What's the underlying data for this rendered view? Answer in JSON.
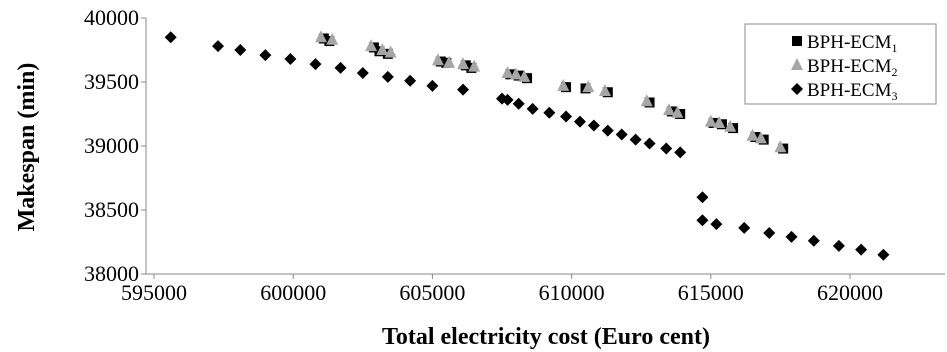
{
  "chart_data": {
    "type": "scatter",
    "title": "",
    "xlabel": "Total electricity cost (Euro  cent)",
    "ylabel": "Makespan (min)",
    "xlim": [
      595000,
      621500
    ],
    "ylim": [
      38000,
      40000
    ],
    "xticks": [
      "595000",
      "600000",
      "605000",
      "610000",
      "615000",
      "620000"
    ],
    "yticks": [
      "38000",
      "38500",
      "39000",
      "39500",
      "40000"
    ],
    "grid": false,
    "legend_position": "top-right",
    "series": [
      {
        "name_base": "BPH-ECM",
        "name_sub": "1",
        "marker": "square",
        "color": "#000000",
        "points": [
          [
            601100,
            39840
          ],
          [
            601300,
            39820
          ],
          [
            602900,
            39770
          ],
          [
            603100,
            39740
          ],
          [
            603400,
            39720
          ],
          [
            605300,
            39660
          ],
          [
            605500,
            39650
          ],
          [
            606200,
            39630
          ],
          [
            606400,
            39610
          ],
          [
            607800,
            39560
          ],
          [
            608100,
            39550
          ],
          [
            608400,
            39530
          ],
          [
            609800,
            39460
          ],
          [
            610500,
            39450
          ],
          [
            611300,
            39420
          ],
          [
            612800,
            39340
          ],
          [
            613600,
            39270
          ],
          [
            613900,
            39250
          ],
          [
            615100,
            39180
          ],
          [
            615400,
            39170
          ],
          [
            615800,
            39140
          ],
          [
            616600,
            39070
          ],
          [
            616900,
            39050
          ],
          [
            617600,
            38980
          ]
        ]
      },
      {
        "name_base": "BPH-ECM",
        "name_sub": "2",
        "marker": "triangle",
        "color": "#a6a6a6",
        "points": [
          [
            601000,
            39850
          ],
          [
            601400,
            39830
          ],
          [
            602800,
            39780
          ],
          [
            603200,
            39750
          ],
          [
            603500,
            39730
          ],
          [
            605200,
            39670
          ],
          [
            605600,
            39650
          ],
          [
            606100,
            39640
          ],
          [
            606500,
            39620
          ],
          [
            607700,
            39570
          ],
          [
            608000,
            39560
          ],
          [
            608300,
            39540
          ],
          [
            609700,
            39470
          ],
          [
            610600,
            39460
          ],
          [
            611200,
            39430
          ],
          [
            612700,
            39350
          ],
          [
            613500,
            39280
          ],
          [
            613800,
            39260
          ],
          [
            615000,
            39190
          ],
          [
            615300,
            39180
          ],
          [
            615700,
            39150
          ],
          [
            616500,
            39080
          ],
          [
            616800,
            39060
          ],
          [
            617500,
            38990
          ]
        ]
      },
      {
        "name_base": "BPH-ECM",
        "name_sub": "3",
        "marker": "diamond",
        "color": "#000000",
        "points": [
          [
            595600,
            39850
          ],
          [
            597300,
            39780
          ],
          [
            598100,
            39750
          ],
          [
            599000,
            39710
          ],
          [
            599900,
            39680
          ],
          [
            600800,
            39640
          ],
          [
            601700,
            39610
          ],
          [
            602500,
            39570
          ],
          [
            603400,
            39540
          ],
          [
            604200,
            39510
          ],
          [
            605000,
            39470
          ],
          [
            606100,
            39440
          ],
          [
            607500,
            39370
          ],
          [
            607700,
            39360
          ],
          [
            608100,
            39330
          ],
          [
            608600,
            39290
          ],
          [
            609200,
            39260
          ],
          [
            609800,
            39230
          ],
          [
            610300,
            39190
          ],
          [
            610800,
            39160
          ],
          [
            611300,
            39120
          ],
          [
            611800,
            39090
          ],
          [
            612300,
            39050
          ],
          [
            612800,
            39020
          ],
          [
            613400,
            38980
          ],
          [
            613900,
            38950
          ],
          [
            614700,
            38600
          ],
          [
            614700,
            38420
          ],
          [
            615200,
            38390
          ],
          [
            616200,
            38360
          ],
          [
            617100,
            38320
          ],
          [
            617900,
            38290
          ],
          [
            618700,
            38260
          ],
          [
            619600,
            38220
          ],
          [
            620400,
            38190
          ],
          [
            621200,
            38150
          ]
        ]
      }
    ]
  }
}
